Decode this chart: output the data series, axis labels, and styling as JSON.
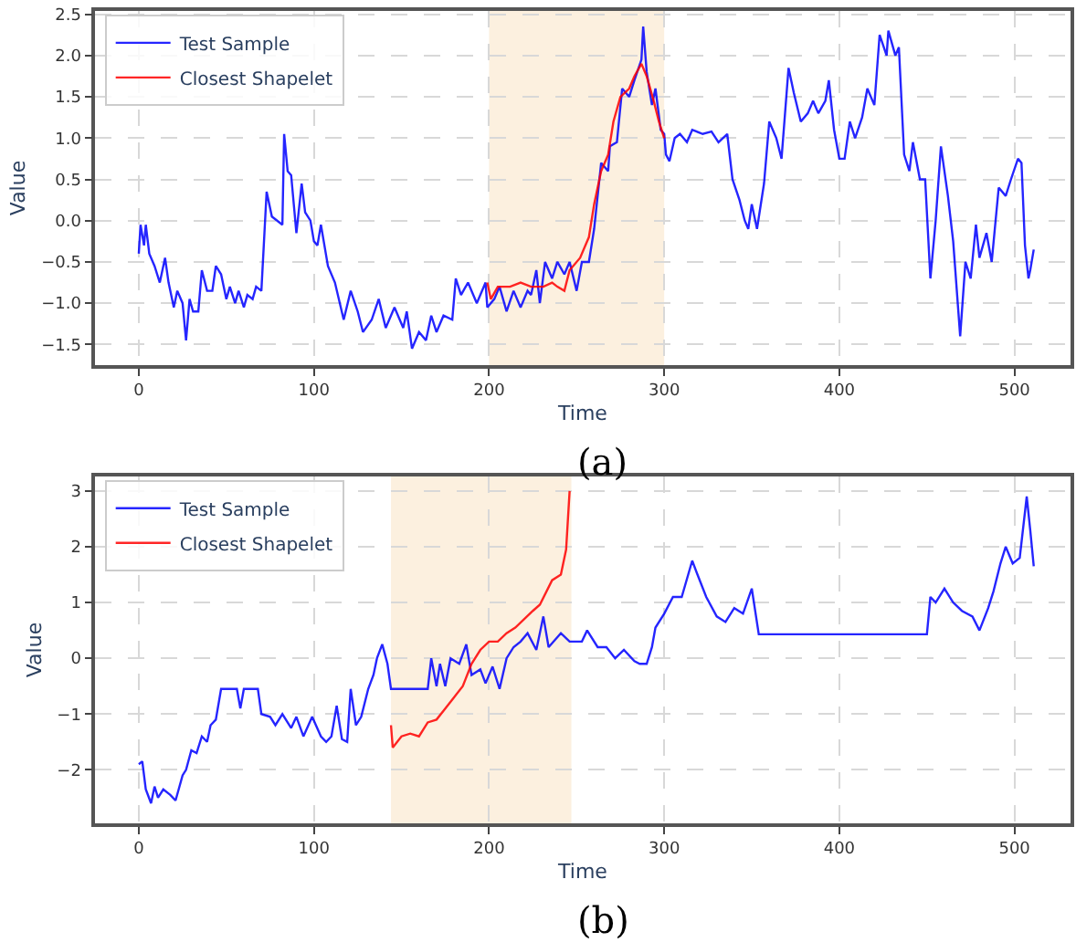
{
  "chart_data": [
    {
      "type": "line",
      "xlabel": "Time",
      "ylabel": "Value",
      "annotations": [
        "(a)"
      ],
      "legend": "top left",
      "grid": true,
      "line_style": "solid",
      "xlim": [
        -25,
        532
      ],
      "ylim": [
        -1.75,
        2.54
      ],
      "xticks": [
        0,
        100,
        200,
        300,
        400,
        500
      ],
      "yticks": [
        {
          "value": -1.5,
          "label": "−1.5"
        },
        {
          "value": -1.0,
          "label": "−1.0"
        },
        {
          "value": -0.5,
          "label": "−0.5"
        },
        {
          "value": 0,
          "label": "0.0"
        },
        {
          "value": 0.5,
          "label": "0.5"
        },
        {
          "value": 1.0,
          "label": "1.0"
        },
        {
          "value": 1.5,
          "label": "1.5"
        },
        {
          "value": 2.0,
          "label": "2.0"
        },
        {
          "value": 2.5,
          "label": "2.5"
        }
      ],
      "bands": [
        {
          "axis": "x",
          "from": 200,
          "to": 300,
          "color": "#fcf0df"
        }
      ],
      "series": [
        {
          "name": "Test Sample",
          "color": "#0000ff",
          "x": [
            0,
            1,
            3,
            4,
            6,
            9,
            12,
            15,
            17,
            20,
            22,
            25,
            27,
            29,
            31,
            34,
            36,
            39,
            42,
            44,
            47,
            50,
            52,
            55,
            57,
            60,
            62,
            65,
            67,
            70,
            73,
            76,
            79,
            82,
            83,
            85,
            87,
            90,
            93,
            95,
            98,
            100,
            102,
            104,
            108,
            112,
            117,
            121,
            125,
            128,
            133,
            137,
            141,
            146,
            151,
            153,
            156,
            160,
            164,
            167,
            170,
            174,
            179,
            181,
            184,
            188,
            193,
            198,
            199,
            203,
            206,
            210,
            214,
            218,
            222,
            224,
            227,
            229,
            232,
            236,
            239,
            243,
            246,
            250,
            253,
            257,
            260,
            264,
            268,
            269,
            273,
            276,
            280,
            283,
            287,
            288,
            290,
            293,
            295,
            298,
            300,
            301,
            303,
            306,
            309,
            313,
            316,
            322,
            327,
            331,
            336,
            339,
            343,
            346,
            348,
            350,
            353,
            357,
            360,
            364,
            367,
            371,
            374,
            378,
            382,
            385,
            388,
            392,
            394,
            397,
            400,
            403,
            406,
            409,
            413,
            416,
            420,
            423,
            427,
            428,
            432,
            434,
            437,
            440,
            442,
            446,
            449,
            452,
            455,
            458,
            462,
            465,
            469,
            472,
            475,
            478,
            480,
            484,
            487,
            491,
            495,
            498,
            502,
            504,
            506,
            508,
            509,
            511
          ],
          "values": [
            -0.4,
            -0.05,
            -0.3,
            -0.05,
            -0.4,
            -0.55,
            -0.75,
            -0.45,
            -0.75,
            -1.05,
            -0.85,
            -1.0,
            -1.45,
            -0.95,
            -1.1,
            -1.1,
            -0.6,
            -0.85,
            -0.85,
            -0.55,
            -0.65,
            -0.95,
            -0.8,
            -1.0,
            -0.85,
            -1.05,
            -0.9,
            -0.95,
            -0.8,
            -0.85,
            0.35,
            0.05,
            0.0,
            -0.05,
            1.05,
            0.6,
            0.55,
            -0.15,
            0.45,
            0.1,
            0.0,
            -0.25,
            -0.3,
            -0.05,
            -0.55,
            -0.75,
            -1.2,
            -0.85,
            -1.1,
            -1.35,
            -1.2,
            -0.95,
            -1.3,
            -1.05,
            -1.3,
            -1.1,
            -1.55,
            -1.35,
            -1.45,
            -1.15,
            -1.35,
            -1.15,
            -1.2,
            -0.7,
            -0.9,
            -0.75,
            -1.0,
            -0.75,
            -1.05,
            -0.95,
            -0.8,
            -1.1,
            -0.85,
            -1.05,
            -0.85,
            -0.9,
            -0.6,
            -1.0,
            -0.5,
            -0.7,
            -0.5,
            -0.65,
            -0.5,
            -0.85,
            -0.5,
            -0.5,
            -0.1,
            0.7,
            0.6,
            0.9,
            0.95,
            1.6,
            1.5,
            1.7,
            1.95,
            2.35,
            1.8,
            1.4,
            1.6,
            1.1,
            1.05,
            0.8,
            0.72,
            1.0,
            1.05,
            0.95,
            1.1,
            1.05,
            1.08,
            0.95,
            1.05,
            0.5,
            0.25,
            0.0,
            -0.1,
            0.2,
            -0.1,
            0.45,
            1.2,
            1.0,
            0.75,
            1.85,
            1.55,
            1.2,
            1.3,
            1.45,
            1.3,
            1.45,
            1.7,
            1.1,
            0.75,
            0.75,
            1.2,
            1.0,
            1.25,
            1.6,
            1.4,
            2.25,
            2.0,
            2.3,
            2.0,
            2.1,
            0.8,
            0.6,
            0.95,
            0.5,
            0.5,
            -0.7,
            0.0,
            0.9,
            0.3,
            -0.25,
            -1.4,
            -0.5,
            -0.7,
            -0.05,
            -0.45,
            -0.15,
            -0.5,
            0.4,
            0.3,
            0.5,
            0.75,
            0.7,
            -0.3,
            -0.7,
            -0.6,
            -0.35
          ]
        },
        {
          "name": "Closest Shapelet",
          "color": "#ff0000",
          "x": [
            199,
            201,
            205,
            212,
            218,
            224,
            231,
            236,
            239,
            243,
            246,
            252,
            257,
            260,
            264,
            268,
            271,
            275,
            280,
            283,
            287,
            290,
            294,
            297,
            300
          ],
          "values": [
            -0.75,
            -0.95,
            -0.8,
            -0.8,
            -0.75,
            -0.8,
            -0.8,
            -0.75,
            -0.8,
            -0.85,
            -0.6,
            -0.45,
            -0.2,
            0.2,
            0.6,
            0.8,
            1.2,
            1.5,
            1.6,
            1.75,
            1.9,
            1.75,
            1.45,
            1.2,
            1.0
          ]
        }
      ]
    },
    {
      "type": "line",
      "xlabel": "Time",
      "ylabel": "Value",
      "annotations": [
        "(b)"
      ],
      "legend": "top left",
      "grid": true,
      "line_style": "solid",
      "xlim": [
        -25,
        532
      ],
      "ylim": [
        -2.96,
        3.26
      ],
      "xticks": [
        0,
        100,
        200,
        300,
        400,
        500
      ],
      "yticks": [
        {
          "value": -2,
          "label": "−2"
        },
        {
          "value": -1,
          "label": "−1"
        },
        0,
        1,
        2,
        3
      ],
      "bands": [
        {
          "axis": "x",
          "from": 144,
          "to": 247,
          "color": "#fcf0df"
        }
      ],
      "series": [
        {
          "name": "Test Sample",
          "color": "#0000ff",
          "x": [
            0,
            2,
            4,
            7,
            9,
            11,
            14,
            18,
            21,
            25,
            27,
            30,
            33,
            36,
            39,
            41,
            44,
            47,
            56,
            58,
            60,
            68,
            70,
            75,
            78,
            82,
            87,
            90,
            94,
            99,
            104,
            107,
            110,
            113,
            116,
            119,
            121,
            124,
            127,
            131,
            134,
            136,
            139,
            142,
            144,
            165,
            167,
            170,
            172,
            175,
            178,
            183,
            187,
            190,
            195,
            198,
            202,
            206,
            210,
            214,
            218,
            222,
            227,
            231,
            234,
            241,
            246,
            253,
            256,
            262,
            267,
            272,
            277,
            283,
            286,
            290,
            293,
            295,
            300,
            305,
            310,
            316,
            319,
            324,
            330,
            335,
            340,
            345,
            350,
            354,
            450,
            452,
            455,
            460,
            465,
            470,
            476,
            480,
            485,
            488,
            492,
            495,
            499,
            503,
            507,
            509,
            511
          ],
          "values": [
            -1.9,
            -1.85,
            -2.35,
            -2.6,
            -2.3,
            -2.5,
            -2.35,
            -2.45,
            -2.55,
            -2.1,
            -2.0,
            -1.65,
            -1.7,
            -1.4,
            -1.5,
            -1.2,
            -1.1,
            -0.55,
            -0.55,
            -0.9,
            -0.55,
            -0.55,
            -1.0,
            -1.05,
            -1.2,
            -1.0,
            -1.25,
            -1.05,
            -1.4,
            -1.05,
            -1.4,
            -1.5,
            -1.4,
            -0.85,
            -1.45,
            -1.5,
            -0.55,
            -1.2,
            -1.05,
            -0.55,
            -0.3,
            0.0,
            0.25,
            -0.1,
            -0.55,
            -0.55,
            0.0,
            -0.5,
            -0.1,
            -0.5,
            0.0,
            -0.1,
            0.25,
            -0.3,
            -0.2,
            -0.45,
            -0.15,
            -0.55,
            0.0,
            0.2,
            0.3,
            0.45,
            0.15,
            0.75,
            0.2,
            0.45,
            0.3,
            0.3,
            0.5,
            0.2,
            0.2,
            0.0,
            0.15,
            -0.05,
            -0.1,
            -0.1,
            0.2,
            0.55,
            0.8,
            1.1,
            1.1,
            1.75,
            1.5,
            1.1,
            0.75,
            0.65,
            0.9,
            0.8,
            1.25,
            0.43,
            0.43,
            1.1,
            1.0,
            1.25,
            1.0,
            0.85,
            0.75,
            0.5,
            0.9,
            1.2,
            1.7,
            2.0,
            1.7,
            1.8,
            2.9,
            2.3,
            1.65
          ]
        },
        {
          "name": "Closest Shapelet",
          "color": "#ff0000",
          "x": [
            144,
            145,
            150,
            155,
            160,
            165,
            170,
            175,
            180,
            185,
            190,
            195,
            200,
            205,
            210,
            215,
            220,
            225,
            229,
            236,
            241,
            244,
            246
          ],
          "values": [
            -1.2,
            -1.6,
            -1.4,
            -1.35,
            -1.4,
            -1.15,
            -1.1,
            -0.9,
            -0.7,
            -0.5,
            -0.1,
            0.15,
            0.3,
            0.3,
            0.45,
            0.55,
            0.7,
            0.85,
            0.96,
            1.4,
            1.5,
            1.95,
            3.0
          ]
        }
      ]
    }
  ]
}
